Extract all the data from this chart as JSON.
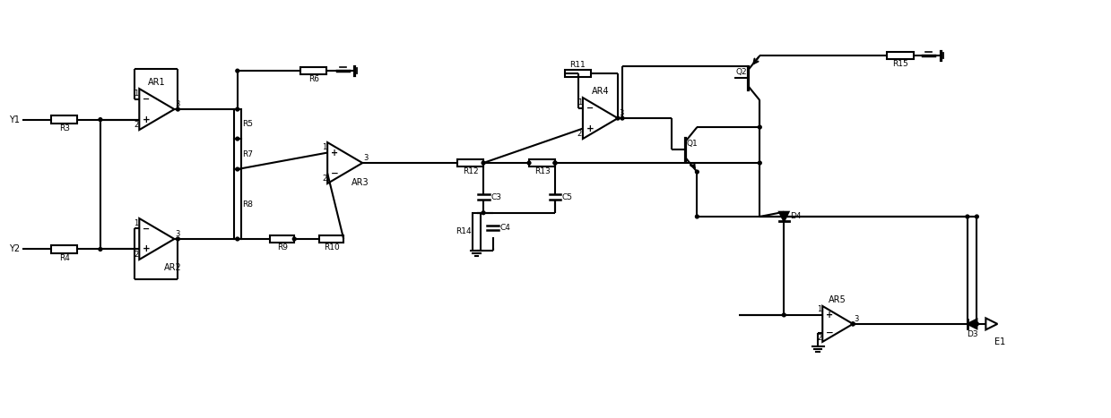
{
  "fig_width": 12.39,
  "fig_height": 4.67,
  "dpi": 100,
  "lw": 1.5,
  "xlim": [
    0,
    124
  ],
  "ylim": [
    0,
    46.7
  ]
}
